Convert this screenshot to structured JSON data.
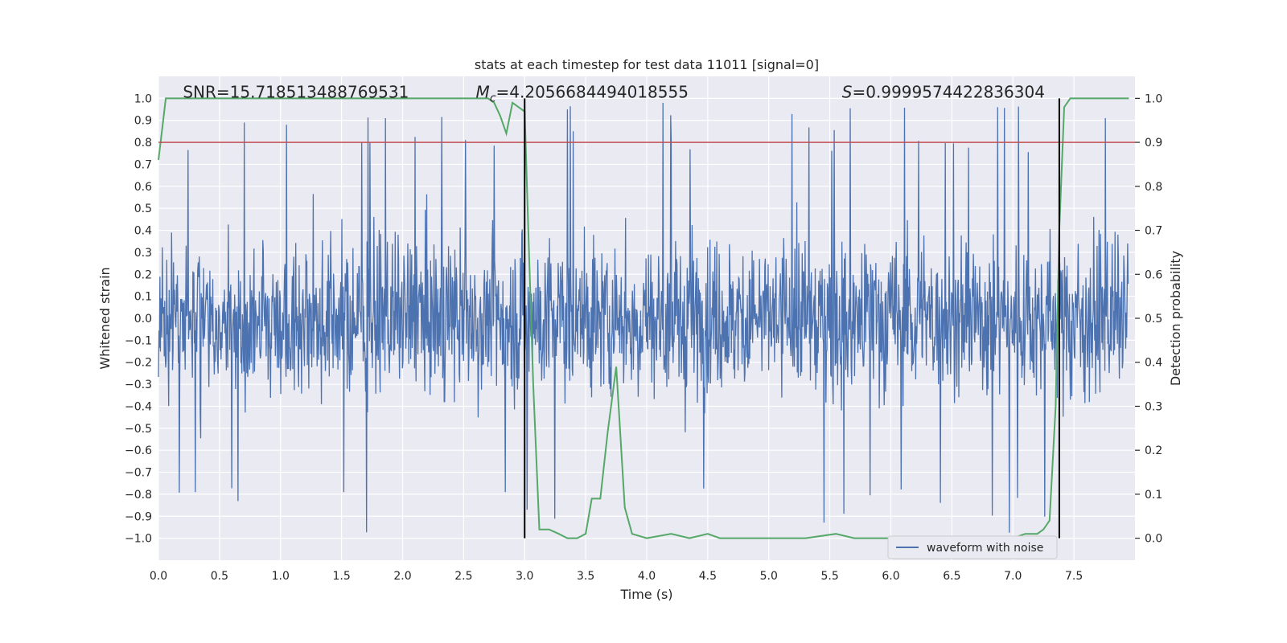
{
  "chart_data": {
    "type": "line",
    "title": "stats at each timestep for test data 11011 [signal=0]",
    "xlabel": "Time (s)",
    "ylabel": "Whitened strain",
    "y2label": "Detection probability",
    "xlim": [
      0,
      8
    ],
    "ylim": [
      -1.1,
      1.1
    ],
    "y2lim": [
      -0.05,
      1.05
    ],
    "xticks": [
      "0.0",
      "0.5",
      "1.0",
      "1.5",
      "2.0",
      "2.5",
      "3.0",
      "3.5",
      "4.0",
      "4.5",
      "5.0",
      "5.5",
      "6.0",
      "6.5",
      "7.0",
      "7.5"
    ],
    "xtick_values": [
      0,
      0.5,
      1,
      1.5,
      2,
      2.5,
      3,
      3.5,
      4,
      4.5,
      5,
      5.5,
      6,
      6.5,
      7,
      7.5
    ],
    "yticks": [
      "1.0",
      "0.9",
      "0.8",
      "0.7",
      "0.6",
      "0.5",
      "0.4",
      "0.3",
      "0.2",
      "0.1",
      "0.0",
      "−0.1",
      "−0.2",
      "−0.3",
      "−0.4",
      "−0.5",
      "−0.6",
      "−0.7",
      "−0.8",
      "−0.9",
      "−1.0"
    ],
    "ytick_values": [
      1,
      0.9,
      0.8,
      0.7,
      0.6,
      0.5,
      0.4,
      0.3,
      0.2,
      0.1,
      0,
      -0.1,
      -0.2,
      -0.3,
      -0.4,
      -0.5,
      -0.6,
      -0.7,
      -0.8,
      -0.9,
      -1
    ],
    "y2ticks": [
      "1.0",
      "0.9",
      "0.8",
      "0.7",
      "0.6",
      "0.5",
      "0.4",
      "0.3",
      "0.2",
      "0.1",
      "0.0"
    ],
    "y2tick_values": [
      1,
      0.9,
      0.8,
      0.7,
      0.6,
      0.5,
      0.4,
      0.3,
      0.2,
      0.1,
      0
    ],
    "annotations": {
      "snr": "SNR=15.718513488769531",
      "mc_symbol": "M",
      "mc_sub": "c",
      "mc_value": "=4.2056684494018555",
      "s_symbol": "S",
      "s_value": "=0.9999574422836304"
    },
    "annotation_positions_x": {
      "snr": 0.2,
      "mc": 2.6,
      "s": 5.6
    },
    "threshold": {
      "value": 0.9,
      "axis": "y2",
      "color": "#c44e52"
    },
    "vlines": [
      {
        "x": 3.0,
        "ymin": -1,
        "ymax": 1,
        "color": "#000000"
      },
      {
        "x": 7.38,
        "ymin": -1,
        "ymax": 1,
        "color": "#000000"
      }
    ],
    "series": [
      {
        "name": "waveform with noise",
        "color": "#4c72b0",
        "axis": "y",
        "kind": "noise",
        "n": 2000,
        "seed": 11011,
        "typical_amplitude": 0.4
      },
      {
        "name": "Detection probability",
        "color": "#55a868",
        "axis": "y2",
        "x": [
          0.0,
          0.03,
          0.06,
          0.5,
          1.0,
          1.5,
          2.0,
          2.5,
          2.7,
          2.75,
          2.8,
          2.85,
          2.9,
          2.95,
          3.0,
          3.03,
          3.07,
          3.12,
          3.2,
          3.28,
          3.35,
          3.43,
          3.5,
          3.55,
          3.62,
          3.68,
          3.75,
          3.82,
          3.88,
          4.0,
          4.2,
          4.35,
          4.5,
          4.6,
          4.75,
          5.0,
          5.3,
          5.55,
          5.7,
          6.0,
          6.5,
          7.0,
          7.1,
          7.2,
          7.25,
          7.3,
          7.35,
          7.38,
          7.42,
          7.47,
          7.55,
          7.7,
          7.85,
          7.95
        ],
        "y": [
          0.86,
          0.93,
          1.0,
          1.0,
          1.0,
          1.0,
          1.0,
          1.0,
          1.0,
          0.99,
          0.96,
          0.92,
          0.99,
          0.98,
          0.97,
          0.7,
          0.35,
          0.02,
          0.02,
          0.01,
          0.0,
          0.0,
          0.01,
          0.09,
          0.09,
          0.24,
          0.39,
          0.07,
          0.01,
          0.0,
          0.01,
          0.0,
          0.01,
          0.0,
          0.0,
          0.0,
          0.0,
          0.01,
          0.0,
          0.0,
          0.0,
          0.0,
          0.01,
          0.01,
          0.02,
          0.04,
          0.3,
          0.7,
          0.98,
          1.0,
          1.0,
          1.0,
          1.0,
          1.0
        ]
      }
    ],
    "legend": {
      "position": "lower-right",
      "entries": [
        "waveform with noise"
      ]
    }
  },
  "colors": {
    "axes_bg": "#eaeaf2",
    "grid": "#ffffff",
    "text": "#262626",
    "legend_bg": "#eaeaf2",
    "legend_border": "#cccccc"
  }
}
